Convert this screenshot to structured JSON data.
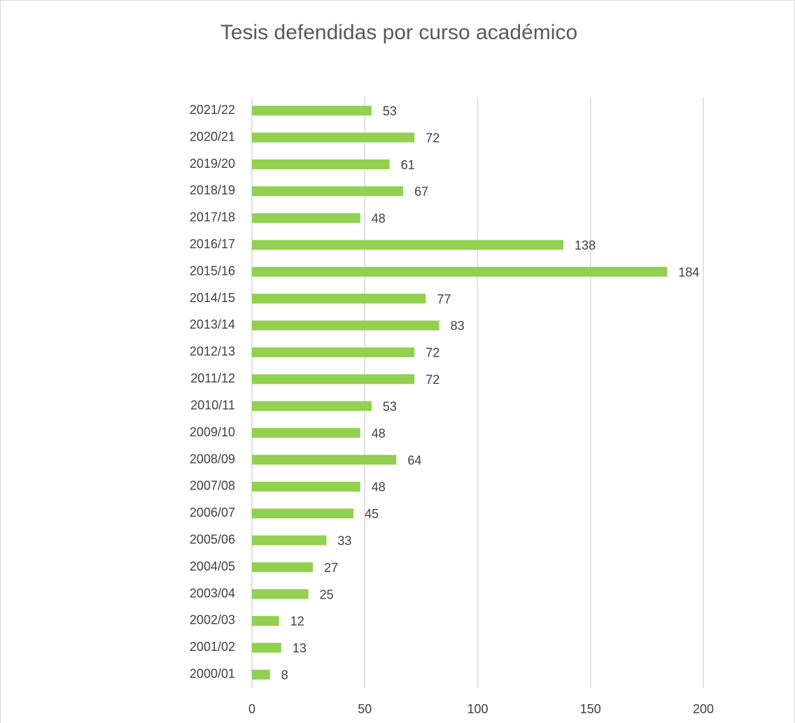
{
  "chart_data": {
    "type": "bar",
    "orientation": "horizontal",
    "title": "Tesis defendidas por curso académico",
    "categories": [
      "2021/22",
      "2020/21",
      "2019/20",
      "2018/19",
      "2017/18",
      "2016/17",
      "2015/16",
      "2014/15",
      "2013/14",
      "2012/13",
      "2011/12",
      "2010/11",
      "2009/10",
      "2008/09",
      "2007/08",
      "2006/07",
      "2005/06",
      "2004/05",
      "2003/04",
      "2002/03",
      "2001/02",
      "2000/01"
    ],
    "values": [
      53,
      72,
      61,
      67,
      48,
      138,
      184,
      77,
      83,
      72,
      72,
      53,
      48,
      64,
      48,
      45,
      33,
      27,
      25,
      12,
      13,
      8
    ],
    "color": "#92d050",
    "xlim": [
      0,
      200
    ],
    "xticks": [
      0,
      50,
      100,
      150,
      200
    ],
    "grid": true
  }
}
